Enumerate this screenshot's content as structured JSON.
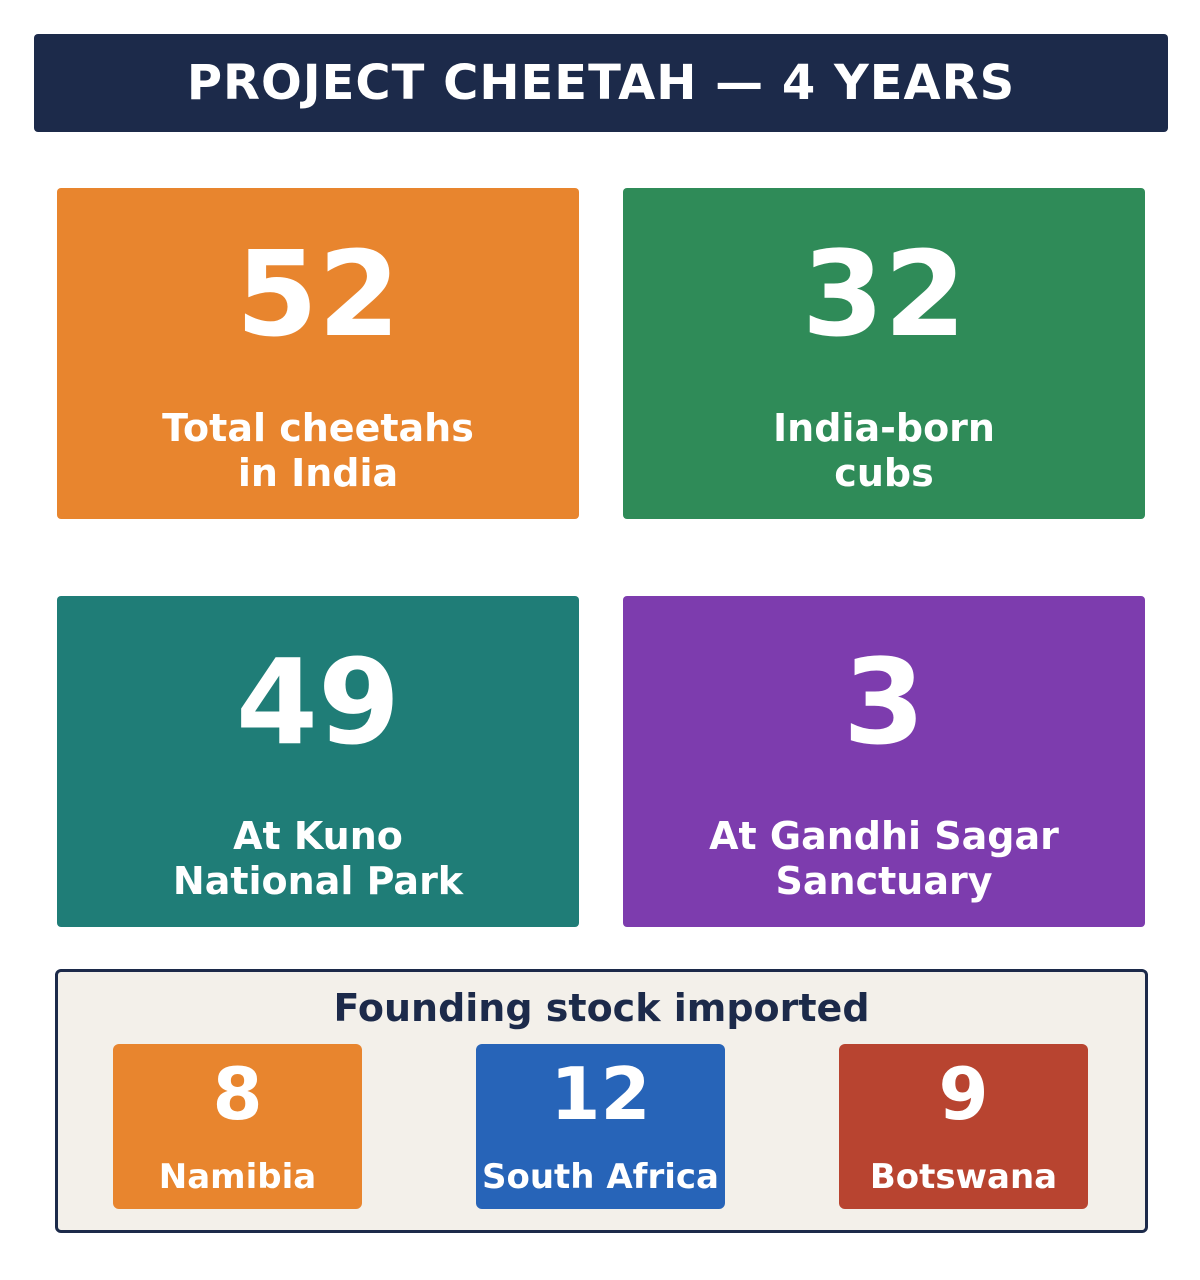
{
  "header": {
    "title": "PROJECT CHEETAH — 4 YEARS"
  },
  "stats": [
    {
      "value": "52",
      "label_lines": [
        "Total cheetahs",
        "in India"
      ],
      "color": "#e8852e"
    },
    {
      "value": "32",
      "label_lines": [
        "India-born",
        "cubs"
      ],
      "color": "#2f8b58"
    },
    {
      "value": "49",
      "label_lines": [
        "At Kuno",
        "National Park"
      ],
      "color": "#1f7d77"
    },
    {
      "value": "3",
      "label_lines": [
        "At Gandhi Sagar",
        "Sanctuary"
      ],
      "color": "#7d3cae"
    }
  ],
  "founding": {
    "title": "Founding stock imported",
    "sources": [
      {
        "value": "8",
        "country": "Namibia",
        "color": "#e8852e"
      },
      {
        "value": "12",
        "country": "South Africa",
        "color": "#2764b8"
      },
      {
        "value": "9",
        "country": "Botswana",
        "color": "#b84430"
      }
    ]
  }
}
